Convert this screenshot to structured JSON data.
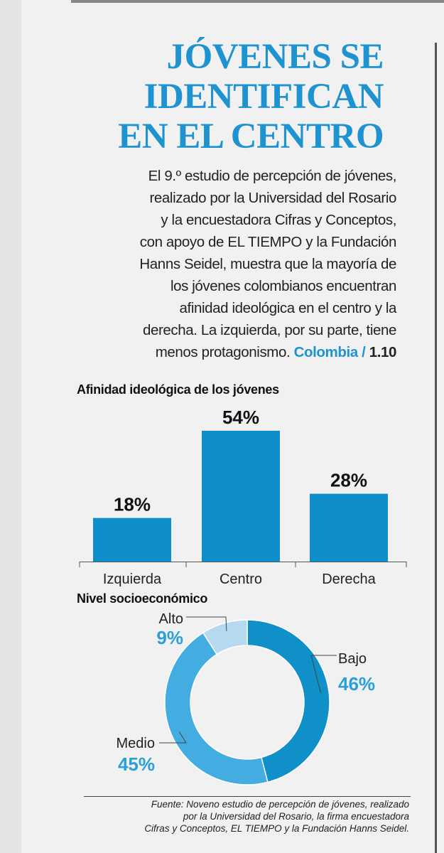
{
  "headline": {
    "line1": "JÓVENES SE",
    "line2": "IDENTIFICAN",
    "line3": "EN EL CENTRO"
  },
  "intro": {
    "lines": [
      "El 9.º estudio de percepción de jóvenes,",
      "realizado por la Universidad del Rosario",
      "y la encuestadora Cifras y Conceptos,",
      "con apoyo de EL TIEMPO y la Fundación",
      "Hanns Seidel, muestra que la mayoría de",
      "los jóvenes colombianos encuentran",
      "afinidad ideológica en el centro y la",
      "derecha. La izquierda, por su parte, tiene",
      "menos protagonismo."
    ],
    "section": "Colombia",
    "separator": "/",
    "page": "1.10"
  },
  "chart_data": [
    {
      "type": "bar",
      "title": "Afinidad ideológica de los jóvenes",
      "categories": [
        "Izquierda",
        "Centro",
        "Derecha"
      ],
      "values": [
        18,
        54,
        28
      ],
      "value_labels": [
        "18%",
        "54%",
        "28%"
      ],
      "unit": "%",
      "ylim": [
        0,
        60
      ],
      "grid": false,
      "color": "#0e8fcb"
    },
    {
      "type": "pie",
      "subtype": "donut",
      "title": "Nivel socioeconómico",
      "categories": [
        "Bajo",
        "Medio",
        "Alto"
      ],
      "values": [
        46,
        45,
        9
      ],
      "value_labels": [
        "46%",
        "45%",
        "9%"
      ],
      "colors": [
        "#0f90c9",
        "#43ace0",
        "#b5d9ee"
      ]
    }
  ],
  "source": {
    "lines": [
      "Fuente: Noveno estudio de percepción de jóvenes, realizado",
      "por la Universidad del Rosario, la firma encuestadora",
      "Cifras y Conceptos, EL TIEMPO y la Fundación Hanns Seidel."
    ]
  }
}
